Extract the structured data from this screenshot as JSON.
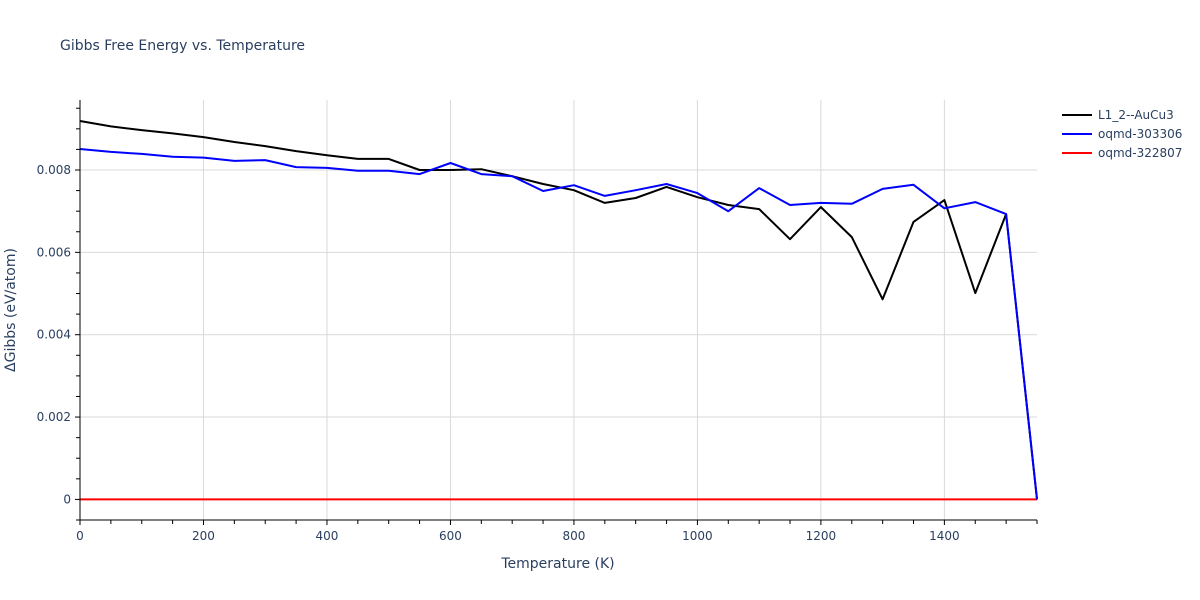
{
  "chart_data": {
    "type": "line",
    "title": "Gibbs Free Energy vs. Temperature",
    "xlabel": "Temperature (K)",
    "ylabel": "ΔGibbs (eV/atom)",
    "xlim": [
      0,
      1550
    ],
    "ylim": [
      -0.0005,
      0.0097
    ],
    "xticks": [
      0,
      200,
      400,
      600,
      800,
      1000,
      1200,
      1400
    ],
    "xtick_labels": [
      "0",
      "200",
      "400",
      "600",
      "800",
      "1000",
      "1200",
      "1400"
    ],
    "yticks": [
      0,
      0.002,
      0.004,
      0.006,
      0.008
    ],
    "ytick_labels": [
      "0",
      "0.002",
      "0.004",
      "0.006",
      "0.008"
    ],
    "grid": true,
    "legend_position": "top-right",
    "x": [
      0,
      50,
      100,
      150,
      200,
      250,
      300,
      350,
      400,
      450,
      500,
      550,
      600,
      650,
      700,
      750,
      800,
      850,
      900,
      950,
      1000,
      1050,
      1100,
      1150,
      1200,
      1250,
      1300,
      1350,
      1400,
      1450,
      1500,
      1550
    ],
    "series": [
      {
        "name": "L1_2--AuCu3",
        "color": "#000000",
        "values": [
          0.00919,
          0.00906,
          0.00897,
          0.00889,
          0.0088,
          0.00868,
          0.00858,
          0.00846,
          0.00836,
          0.00827,
          0.00827,
          0.008,
          0.008,
          0.00802,
          0.00785,
          0.00766,
          0.00751,
          0.0072,
          0.00732,
          0.00759,
          0.00734,
          0.00715,
          0.00705,
          0.00632,
          0.0071,
          0.00637,
          0.00486,
          0.00674,
          0.00727,
          0.00501,
          0.00693,
          0.0
        ]
      },
      {
        "name": "oqmd-303306",
        "color": "#0000ff",
        "values": [
          0.00851,
          0.00844,
          0.00839,
          0.00832,
          0.0083,
          0.00822,
          0.00824,
          0.00807,
          0.00805,
          0.00798,
          0.00798,
          0.0079,
          0.00817,
          0.0079,
          0.00785,
          0.00749,
          0.00763,
          0.00737,
          0.00751,
          0.00766,
          0.00744,
          0.007,
          0.00756,
          0.00715,
          0.0072,
          0.00718,
          0.00754,
          0.00764,
          0.00707,
          0.00722,
          0.00693,
          0.0
        ]
      },
      {
        "name": "oqmd-322807",
        "color": "#ff0000",
        "values": [
          0,
          0,
          0,
          0,
          0,
          0,
          0,
          0,
          0,
          0,
          0,
          0,
          0,
          0,
          0,
          0,
          0,
          0,
          0,
          0,
          0,
          0,
          0,
          0,
          0,
          0,
          0,
          0,
          0,
          0,
          0,
          0
        ]
      }
    ]
  }
}
